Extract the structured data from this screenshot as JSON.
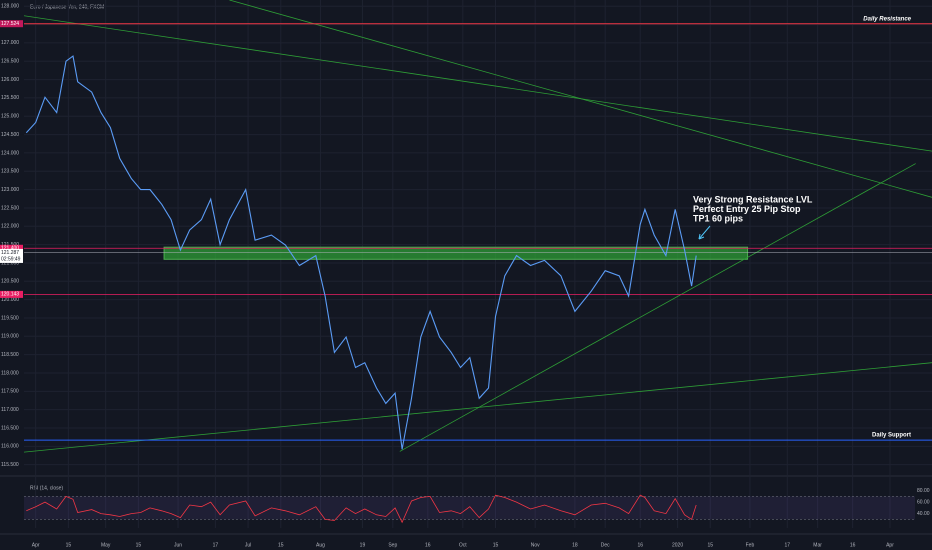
{
  "chart_data": {
    "type": "line",
    "title": "Euro / Japanese Yen, 240, FXCM",
    "color": "#5b9cf6",
    "x": [
      -4,
      0,
      4,
      9,
      13,
      16,
      18,
      24,
      28,
      32,
      36,
      41,
      45,
      49,
      54,
      58,
      62,
      66,
      71,
      75,
      79,
      83,
      90,
      94,
      101,
      107,
      113,
      120,
      124,
      128,
      133,
      137,
      141,
      146,
      150,
      154,
      157,
      161,
      165,
      169,
      173,
      178,
      182,
      186,
      190,
      194,
      197,
      201,
      206,
      212,
      218,
      225,
      231,
      238,
      244,
      250,
      254,
      259,
      261,
      265,
      270,
      274,
      278,
      281,
      283
    ],
    "values": [
      124.55,
      124.83,
      125.52,
      125.1,
      126.5,
      126.64,
      125.94,
      125.66,
      125.1,
      124.69,
      123.85,
      123.3,
      123.0,
      123.0,
      122.6,
      122.18,
      121.35,
      121.9,
      122.18,
      122.74,
      121.5,
      122.18,
      123.0,
      121.62,
      121.76,
      121.49,
      120.93,
      121.2,
      120.1,
      118.56,
      118.98,
      118.15,
      118.28,
      117.59,
      117.17,
      117.45,
      115.92,
      117.31,
      118.98,
      119.68,
      118.98,
      118.56,
      118.15,
      118.42,
      117.31,
      117.59,
      119.54,
      120.65,
      121.2,
      120.93,
      121.07,
      120.65,
      119.68,
      120.23,
      120.79,
      120.65,
      120.1,
      122.05,
      122.46,
      121.76,
      121.2,
      122.46,
      121.35,
      120.37,
      121.2
    ],
    "xlim": [
      -5,
      384
    ],
    "ylim": [
      115.3,
      128.17
    ],
    "xticks": [
      {
        "value": 0,
        "label": "Apr"
      },
      {
        "value": 14,
        "label": "15"
      },
      {
        "value": 30,
        "label": "May"
      },
      {
        "value": 44,
        "label": "15"
      },
      {
        "value": 61,
        "label": "Jun"
      },
      {
        "value": 77,
        "label": "17"
      },
      {
        "value": 91,
        "label": "Jul"
      },
      {
        "value": 105,
        "label": "15"
      },
      {
        "value": 122,
        "label": "Aug"
      },
      {
        "value": 140,
        "label": "19"
      },
      {
        "value": 153,
        "label": "Sep"
      },
      {
        "value": 168,
        "label": "16"
      },
      {
        "value": 183,
        "label": "Oct"
      },
      {
        "value": 197,
        "label": "15"
      },
      {
        "value": 214,
        "label": "Nov"
      },
      {
        "value": 231,
        "label": "18"
      },
      {
        "value": 244,
        "label": "Dec"
      },
      {
        "value": 259,
        "label": "16"
      },
      {
        "value": 275,
        "label": "2020"
      },
      {
        "value": 289,
        "label": "15"
      },
      {
        "value": 306,
        "label": "Feb"
      },
      {
        "value": 322,
        "label": "17"
      },
      {
        "value": 335,
        "label": "Mar"
      },
      {
        "value": 350,
        "label": "16"
      },
      {
        "value": 366,
        "label": "Apr"
      }
    ],
    "yticks": [
      {
        "value": 128,
        "label": "128.000"
      },
      {
        "value": 127.5,
        "label": "127.500"
      },
      {
        "value": 127,
        "label": "127.000"
      },
      {
        "value": 126.5,
        "label": "126.500"
      },
      {
        "value": 126,
        "label": "126.000"
      },
      {
        "value": 125.5,
        "label": "125.500"
      },
      {
        "value": 125,
        "label": "125.000"
      },
      {
        "value": 124.5,
        "label": "124.500"
      },
      {
        "value": 124,
        "label": "124.000"
      },
      {
        "value": 123.5,
        "label": "123.500"
      },
      {
        "value": 123,
        "label": "123.000"
      },
      {
        "value": 122.5,
        "label": "122.500"
      },
      {
        "value": 122,
        "label": "122.000"
      },
      {
        "value": 121.5,
        "label": "121.500"
      },
      {
        "value": 121,
        "label": "121.000"
      },
      {
        "value": 120.5,
        "label": "120.500"
      },
      {
        "value": 120,
        "label": "120.000"
      },
      {
        "value": 119.5,
        "label": "119.500"
      },
      {
        "value": 119,
        "label": "119.000"
      },
      {
        "value": 118.5,
        "label": "118.500"
      },
      {
        "value": 118,
        "label": "118.000"
      },
      {
        "value": 117.5,
        "label": "117.500"
      },
      {
        "value": 117,
        "label": "117.000"
      },
      {
        "value": 116.5,
        "label": "116.500"
      },
      {
        "value": 116,
        "label": "116.000"
      },
      {
        "value": 115.5,
        "label": "115.500"
      }
    ],
    "grid": true,
    "levels": [
      {
        "value": 127.524,
        "color": "#f23645",
        "label": "Daily Resistance"
      },
      {
        "value": 116.17,
        "color": "#2962ff",
        "label": "Daily Support"
      }
    ],
    "level_lines": [
      {
        "value": 121.4,
        "label": "121.400",
        "color": "#e91e63"
      },
      {
        "value": 120.143,
        "color": "#e91e63"
      }
    ],
    "price_label": {
      "value": 127.524,
      "color": "#c2185b"
    },
    "last_price": 121.287,
    "countdown": "02:59:49",
    "zone": {
      "x": [
        55,
        305
      ],
      "y": [
        121.1,
        121.43
      ],
      "color": "#2e9e36"
    },
    "trendlines": [
      {
        "x": [
          -6,
          384
        ],
        "y": [
          127.75,
          124.05
        ]
      },
      {
        "x": [
          83,
          384
        ],
        "y": [
          128.17,
          122.79
        ]
      },
      {
        "x": [
          156,
          377
        ],
        "y": [
          115.86,
          123.71
        ]
      },
      {
        "x": [
          -15,
          384
        ],
        "y": [
          115.78,
          118.28
        ]
      }
    ],
    "annotation": [
      "Very Strong Resistance LVL",
      "Perfect Entry 25 Pip Stop",
      "TP1 60 pips"
    ],
    "rsi": {
      "title": "RSI (14, close)",
      "color": "#f23645",
      "ylim": [
        15,
        95
      ],
      "band": [
        30,
        70
      ],
      "yticks": [
        {
          "value": 80,
          "label": "80.00"
        },
        {
          "value": 60,
          "label": "60.00"
        },
        {
          "value": 40,
          "label": "40.00"
        }
      ],
      "values": [
        45,
        52,
        60,
        48,
        70,
        65,
        42,
        47,
        40,
        38,
        35,
        40,
        42,
        50,
        45,
        40,
        33,
        55,
        52,
        60,
        38,
        55,
        62,
        36,
        50,
        45,
        38,
        52,
        30,
        28,
        50,
        40,
        48,
        38,
        35,
        50,
        25,
        62,
        68,
        70,
        42,
        45,
        40,
        52,
        33,
        48,
        72,
        68,
        60,
        48,
        55,
        45,
        38,
        55,
        58,
        50,
        40,
        72,
        68,
        45,
        40,
        66,
        38,
        30,
        55
      ]
    }
  }
}
